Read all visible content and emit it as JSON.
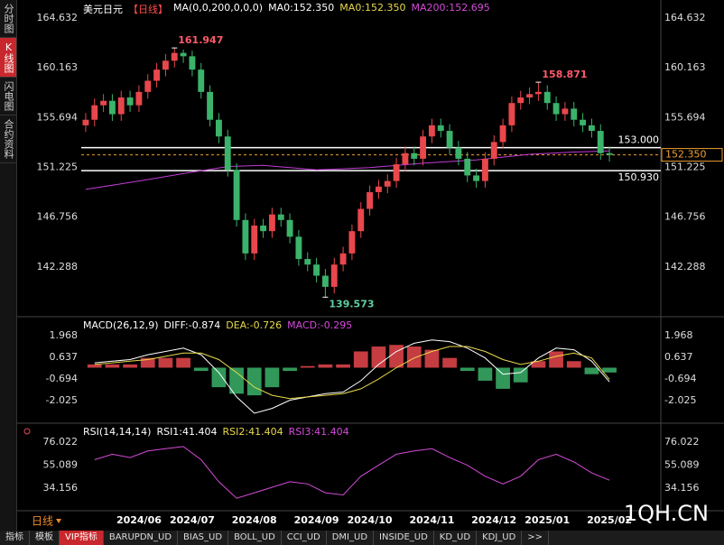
{
  "chart_data": [
    {
      "type": "candlestick",
      "header": [
        {
          "text": "美元日元",
          "color": "#ffffff"
        },
        {
          "text": "【日线】",
          "color": "#ff4d4d"
        },
        {
          "text": "MA(0,0,200,0,0,0)",
          "color": "#ffffff"
        },
        {
          "text": "MA0:152.350",
          "color": "#ffffff"
        },
        {
          "text": "MA0:152.350",
          "color": "#e8d94a"
        },
        {
          "text": "MA200:152.695",
          "color": "#d44bd8"
        }
      ],
      "ylim": [
        137.9,
        166.25
      ],
      "yticks": [
        164.632,
        160.163,
        155.694,
        151.225,
        146.756,
        142.288
      ],
      "xlim": [
        -0.5,
        59.5
      ],
      "up_color": "#e8474c",
      "down_color": "#3bb36a",
      "open": [
        155.0,
        155.5,
        156.8,
        157.2,
        156.0,
        157.5,
        156.8,
        158.0,
        159.0,
        160.0,
        160.8,
        161.5,
        161.2,
        160.0,
        158.0,
        155.5,
        154.0,
        151.0,
        146.5,
        143.5,
        146.0,
        145.5,
        147.0,
        146.5,
        145.0,
        143.0,
        142.5,
        141.5,
        140.5,
        142.5,
        143.5,
        145.5,
        147.5,
        149.0,
        149.5,
        150.0,
        151.5,
        152.5,
        152.0,
        154.0,
        155.0,
        154.5,
        153.0,
        152.0,
        150.5,
        150.0,
        152.0,
        153.5,
        155.0,
        157.0,
        157.5,
        157.8,
        158.0,
        157.0,
        156.0,
        156.5,
        155.5,
        155.0,
        154.5,
        152.5
      ],
      "high": [
        156.1,
        157.4,
        157.8,
        157.8,
        158.1,
        158.1,
        158.6,
        159.6,
        160.6,
        161.4,
        161.947,
        161.8,
        161.7,
        160.6,
        158.6,
        156.1,
        154.6,
        151.6,
        147.1,
        146.6,
        146.6,
        147.6,
        147.6,
        147.1,
        145.6,
        143.6,
        143.1,
        142.1,
        143.1,
        144.1,
        146.1,
        148.1,
        149.6,
        150.1,
        150.6,
        152.1,
        153.1,
        153.1,
        154.6,
        155.6,
        155.6,
        155.1,
        153.6,
        152.6,
        151.1,
        152.6,
        154.1,
        155.6,
        157.6,
        158.1,
        158.4,
        158.871,
        158.6,
        157.6,
        157.1,
        157.1,
        156.1,
        155.6,
        155.1,
        153.1
      ],
      "low": [
        154.4,
        154.9,
        156.2,
        155.4,
        155.4,
        156.2,
        156.2,
        157.4,
        158.4,
        159.4,
        160.2,
        160.6,
        159.4,
        157.4,
        154.9,
        153.4,
        150.4,
        145.9,
        142.9,
        142.9,
        144.9,
        144.9,
        145.9,
        144.4,
        142.4,
        141.9,
        140.9,
        139.573,
        139.9,
        141.9,
        142.9,
        144.9,
        146.9,
        148.4,
        148.9,
        149.4,
        150.9,
        151.4,
        151.4,
        153.4,
        153.9,
        152.4,
        151.4,
        149.9,
        149.4,
        149.4,
        151.4,
        152.9,
        154.4,
        156.4,
        156.9,
        157.2,
        156.4,
        155.4,
        155.4,
        154.9,
        154.4,
        153.9,
        151.9,
        151.75
      ],
      "close": [
        155.5,
        156.8,
        157.2,
        156.0,
        157.5,
        156.8,
        158.0,
        159.0,
        160.0,
        160.8,
        161.5,
        161.2,
        160.0,
        158.0,
        155.5,
        154.0,
        151.0,
        146.5,
        143.5,
        146.0,
        145.5,
        147.0,
        146.5,
        145.0,
        143.0,
        142.5,
        141.5,
        140.5,
        142.5,
        143.5,
        145.5,
        147.5,
        149.0,
        149.5,
        150.0,
        151.5,
        152.5,
        152.0,
        154.0,
        155.0,
        154.5,
        153.0,
        152.0,
        150.5,
        150.0,
        152.0,
        153.5,
        155.0,
        157.0,
        157.5,
        157.8,
        158.0,
        157.0,
        156.0,
        156.5,
        155.5,
        155.0,
        154.5,
        152.5,
        152.35
      ],
      "series": [
        {
          "color": "#c23ad6",
          "x": [
            0,
            6,
            12,
            16,
            20,
            26,
            32,
            38,
            44,
            50,
            55,
            59
          ],
          "values": [
            149.25,
            150.0,
            150.8,
            151.3,
            151.4,
            151.0,
            151.2,
            151.6,
            151.9,
            152.4,
            152.6,
            152.695
          ]
        }
      ],
      "levels": [
        {
          "value": 153,
          "label": "153.000",
          "color": "#ffffff",
          "style": "solid"
        },
        {
          "value": 150.93,
          "label": "150.930",
          "color": "#ffffff",
          "style": "solid"
        },
        {
          "value": 152.35,
          "label": "152.350",
          "color": "#f0a030",
          "style": "dashed"
        }
      ],
      "annotations": [
        {
          "x": 10,
          "value": 161.947,
          "color": "#ff5a6a",
          "at": "high"
        },
        {
          "x": 27,
          "value": 139.573,
          "color": "#5fd0a0",
          "at": "low"
        },
        {
          "x": 51,
          "value": 158.871,
          "color": "#ff5a6a",
          "at": "high"
        }
      ]
    },
    {
      "type": "macd",
      "header": [
        {
          "text": "MACD(26,12,9)",
          "color": "#ffffff"
        },
        {
          "text": "DIFF:-0.874",
          "color": "#ffffff"
        },
        {
          "text": "DEA:-0.726",
          "color": "#e8d94a"
        },
        {
          "text": "MACD:-0.295",
          "color": "#d44bd8"
        }
      ],
      "ylim": [
        -3.356,
        3.077
      ],
      "yticks": [
        1.968,
        0.637,
        -0.694,
        -2.025
      ],
      "xlim": [
        -0.5,
        59.5
      ],
      "x": [
        1,
        3,
        5,
        7,
        9,
        11,
        13,
        15,
        17,
        19,
        21,
        23,
        25,
        27,
        29,
        31,
        33,
        35,
        37,
        39,
        41,
        43,
        45,
        47,
        49,
        51,
        53,
        55,
        57,
        59
      ],
      "histogram": [
        0.2,
        0.2,
        0.2,
        0.6,
        0.6,
        0.6,
        -0.2,
        -1.2,
        -1.6,
        -1.7,
        -1.2,
        -0.2,
        0.1,
        0.2,
        0.2,
        1.0,
        1.3,
        1.4,
        1.3,
        1.1,
        0.6,
        -0.2,
        -0.8,
        -1.3,
        -0.9,
        0.4,
        1.0,
        0.4,
        -0.4,
        -0.295
      ],
      "up_color": "#e8474c",
      "down_color": "#3bb36a",
      "series": [
        {
          "color": "#ffffff",
          "values": [
            0.3,
            0.4,
            0.5,
            0.8,
            1.0,
            1.2,
            0.8,
            -0.3,
            -1.8,
            -2.8,
            -2.5,
            -2.0,
            -1.8,
            -1.6,
            -1.5,
            -0.8,
            0.2,
            1.0,
            1.5,
            1.7,
            1.6,
            1.2,
            0.6,
            -0.4,
            -0.3,
            0.6,
            1.2,
            1.1,
            0.4,
            -0.874
          ]
        },
        {
          "color": "#e8d94a",
          "values": [
            0.2,
            0.3,
            0.4,
            0.5,
            0.7,
            0.9,
            0.9,
            0.5,
            -0.3,
            -1.2,
            -1.7,
            -1.9,
            -1.8,
            -1.7,
            -1.6,
            -1.3,
            -0.7,
            0.0,
            0.6,
            1.0,
            1.3,
            1.3,
            1.0,
            0.5,
            0.2,
            0.4,
            0.7,
            0.9,
            0.6,
            -0.726
          ]
        }
      ]
    },
    {
      "type": "line",
      "header": [
        {
          "text": "RSI(14,14,14)",
          "color": "#ffffff"
        },
        {
          "text": "RSI1:41.404",
          "color": "#ffffff"
        },
        {
          "text": "RSI2:41.404",
          "color": "#e8d94a"
        },
        {
          "text": "RSI3:41.404",
          "color": "#d44bd8"
        }
      ],
      "ylim": [
        14.46,
        90.8
      ],
      "yticks": [
        76.022,
        55.089,
        34.156
      ],
      "xlim": [
        -0.5,
        59.5
      ],
      "x": [
        1,
        3,
        5,
        7,
        9,
        11,
        13,
        15,
        17,
        19,
        21,
        23,
        25,
        27,
        29,
        31,
        33,
        35,
        37,
        39,
        41,
        43,
        45,
        47,
        49,
        51,
        53,
        55,
        57,
        59
      ],
      "series": [
        {
          "color": "#d44bd8",
          "values": [
            60,
            65,
            62,
            68,
            70,
            72,
            60,
            40,
            25,
            30,
            35,
            40,
            38,
            30,
            28,
            45,
            55,
            65,
            68,
            70,
            62,
            55,
            45,
            38,
            45,
            60,
            65,
            58,
            48,
            41.404
          ]
        }
      ],
      "xticks": [
        {
          "value": 6,
          "label": "2024/06"
        },
        {
          "value": 12,
          "label": "2024/07"
        },
        {
          "value": 19,
          "label": "2024/08"
        },
        {
          "value": 26,
          "label": "2024/09"
        },
        {
          "value": 32,
          "label": "2024/10"
        },
        {
          "value": 39,
          "label": "2024/11"
        },
        {
          "value": 46,
          "label": "2024/12"
        },
        {
          "value": 52,
          "label": "2025/01"
        },
        {
          "value": 59,
          "label": "2025/02"
        }
      ]
    }
  ],
  "ui": {
    "sidebar": [
      "分时图",
      "K线图",
      "闪电图",
      "合约资料"
    ],
    "sidebar_active": 1,
    "period": "日线",
    "tabs": [
      "指标",
      "模板",
      "VIP指标",
      "BARUPDN_UD",
      "BIAS_UD",
      "BOLL_UD",
      "CCI_UD",
      "DMI_UD",
      "INSIDE_UD",
      "KD_UD",
      "KDJ_UD",
      ">>"
    ],
    "tab_active": 2,
    "watermark": "1QH.CN"
  }
}
